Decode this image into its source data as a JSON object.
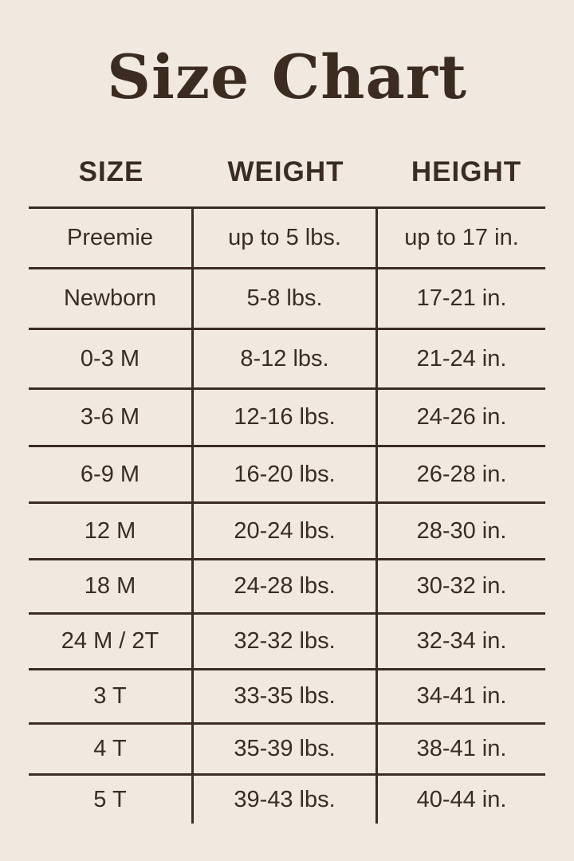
{
  "title": "Size Chart",
  "headers": [
    "SIZE",
    "WEIGHT",
    "HEIGHT"
  ],
  "rows": [
    [
      "Preemie",
      "up to 5 lbs.",
      "up to 17 in."
    ],
    [
      "Newborn",
      "5-8 lbs.",
      "17-21 in."
    ],
    [
      "0-3 M",
      "8-12 lbs.",
      "21-24 in."
    ],
    [
      "3-6 M",
      "12-16 lbs.",
      "24-26 in."
    ],
    [
      "6-9 M",
      "16-20 lbs.",
      "26-28 in."
    ],
    [
      "12 M",
      "20-24 lbs.",
      "28-30 in."
    ],
    [
      "18 M",
      "24-28 lbs.",
      "30-32 in."
    ],
    [
      "24 M / 2T",
      "32-32 lbs.",
      "32-34 in."
    ],
    [
      "3 T",
      "33-35 lbs.",
      "34-41 in."
    ],
    [
      "4 T",
      "35-39 lbs.",
      "38-41 in."
    ],
    [
      "5 T",
      "39-43 lbs.",
      "40-44 in."
    ]
  ],
  "colors": {
    "background": "#f1e9df",
    "text": "#3a2c22"
  }
}
